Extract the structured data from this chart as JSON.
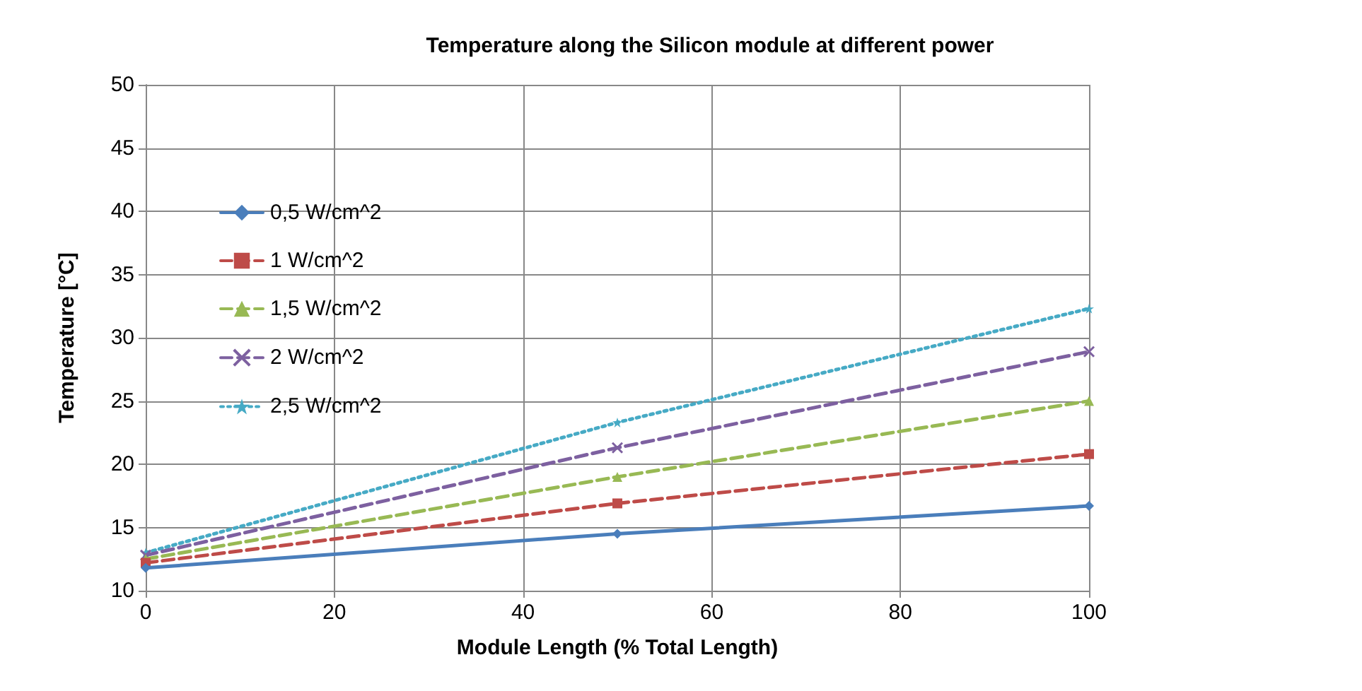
{
  "chart_data": {
    "type": "line",
    "title": "Temperature along the Silicon module at different power",
    "xlabel": "Module Length (% Total Length)",
    "ylabel": "Temperature [°C]",
    "x": [
      0,
      50,
      100
    ],
    "xlim": [
      0,
      100
    ],
    "xticks": [
      0,
      20,
      40,
      60,
      80,
      100
    ],
    "ylim": [
      10,
      50
    ],
    "yticks": [
      10,
      15,
      20,
      25,
      30,
      35,
      40,
      45,
      50
    ],
    "grid": true,
    "legend": "top left",
    "series": [
      {
        "name": "0,5 W/cm^2",
        "color": "#4a7ebb",
        "values": [
          11.8,
          14.5,
          16.7
        ],
        "marker": "diamond",
        "line_style": "solid"
      },
      {
        "name": "1 W/cm^2",
        "color": "#be4b48",
        "values": [
          12.2,
          16.9,
          20.8
        ],
        "marker": "square",
        "line_style": "dashed"
      },
      {
        "name": "1,5 W/cm^2",
        "color": "#98b954",
        "values": [
          12.5,
          19.0,
          25.0
        ],
        "marker": "triangle",
        "line_style": "dashed"
      },
      {
        "name": "2 W/cm^2",
        "color": "#7d60a0",
        "values": [
          12.8,
          21.3,
          28.9
        ],
        "marker": "cross",
        "line_style": "dashed"
      },
      {
        "name": "2,5 W/cm^2",
        "color": "#46aac5",
        "values": [
          13.0,
          23.3,
          32.3
        ],
        "marker": "star",
        "line_style": "dotted"
      }
    ]
  }
}
